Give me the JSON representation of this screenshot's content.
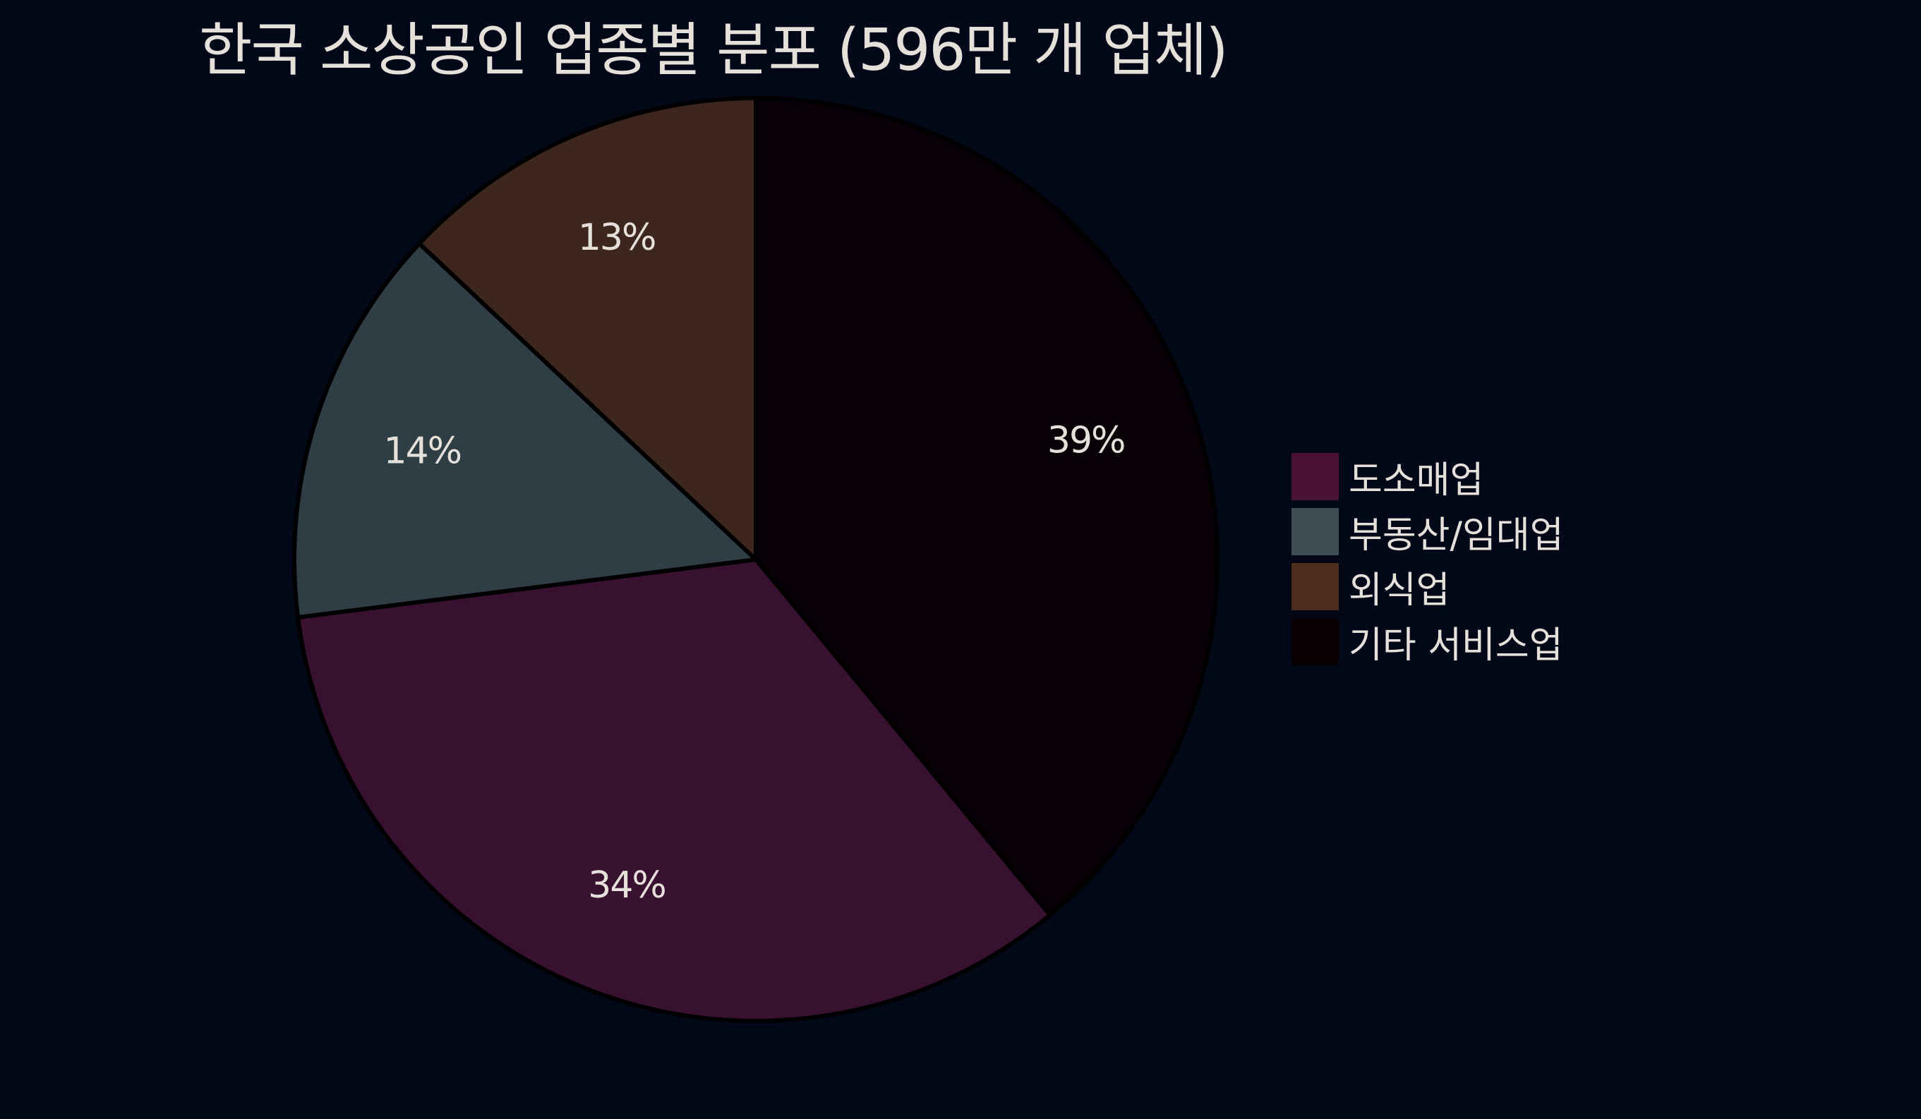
{
  "chart_data": {
    "type": "pie",
    "title": "한국 소상공인 업종별 분포 (596만 개 업체)",
    "categories": [
      "도소매업",
      "부동산/임대업",
      "외식업",
      "기타 서비스업"
    ],
    "values": [
      34,
      14,
      13,
      39
    ],
    "data_labels": [
      "34%",
      "14%",
      "13%",
      "39%"
    ],
    "slice_order_clockwise_from_top": [
      "기타 서비스업",
      "도소매업",
      "부동산/임대업",
      "외식업"
    ],
    "colors": [
      "#4a1235",
      "#3e4e54",
      "#4f2d1c",
      "#0a0003"
    ],
    "slice_colors": [
      "#381030",
      "#2f3d45",
      "#3c261d",
      "#080006"
    ],
    "legend_position": "right"
  }
}
